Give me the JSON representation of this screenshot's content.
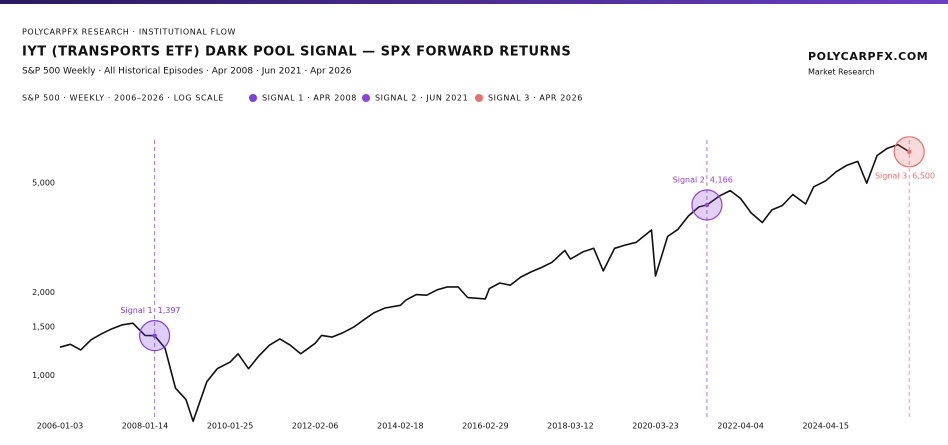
{
  "chart_data": {
    "type": "line",
    "kicker": "POLYCARPFX RESEARCH · INSTITUTIONAL FLOW",
    "title": "IYT (TRANSPORTS ETF) DARK POOL SIGNAL — SPX FORWARD RETURNS",
    "subtitle": "S&P 500 Weekly · All Historical Episodes · Apr 2008 · Jun 2021 · Apr 2026",
    "brand": "POLYCARPFX.COM",
    "brand_sub": "Market Research",
    "log_scale": true,
    "x": [
      "2006-01-03",
      "2006-04-03",
      "2006-07-03",
      "2006-10-02",
      "2007-01-02",
      "2007-04-02",
      "2007-07-02",
      "2007-10-01",
      "2008-01-14",
      "2008-04-07",
      "2008-07-07",
      "2008-10-06",
      "2009-01-05",
      "2009-03-09",
      "2009-07-06",
      "2009-10-05",
      "2010-01-25",
      "2010-04-05",
      "2010-07-05",
      "2010-10-04",
      "2011-01-03",
      "2011-04-04",
      "2011-07-04",
      "2011-10-03",
      "2012-02-06",
      "2012-04-02",
      "2012-07-02",
      "2012-10-01",
      "2013-01-07",
      "2013-04-01",
      "2013-07-01",
      "2013-10-07",
      "2014-02-18",
      "2014-04-07",
      "2014-07-07",
      "2014-10-06",
      "2015-01-05",
      "2015-04-06",
      "2015-07-06",
      "2015-09-28",
      "2016-02-29",
      "2016-04-04",
      "2016-07-04",
      "2016-10-03",
      "2017-01-02",
      "2017-04-03",
      "2017-07-03",
      "2017-10-02",
      "2018-01-22",
      "2018-03-12",
      "2018-07-02",
      "2018-10-01",
      "2018-12-24",
      "2019-04-01",
      "2019-07-01",
      "2019-10-07",
      "2020-02-17",
      "2020-03-23",
      "2020-07-06",
      "2020-10-05",
      "2021-01-04",
      "2021-04-05",
      "2021-06-14",
      "2021-10-04",
      "2022-01-03",
      "2022-04-04",
      "2022-07-04",
      "2022-10-10",
      "2023-01-02",
      "2023-04-03",
      "2023-07-03",
      "2023-10-23",
      "2024-01-01",
      "2024-04-15",
      "2024-07-15",
      "2024-10-14",
      "2025-01-20",
      "2025-04-07",
      "2025-07-07",
      "2025-10-06",
      "2026-01-05",
      "2026-04-13"
    ],
    "series": [
      {
        "name": "S&P 500 · WEEKLY · 2006–2026 · LOG SCALE",
        "color": "#111111",
        "values": [
          1268,
          1300,
          1240,
          1350,
          1420,
          1480,
          1530,
          1550,
          1400,
          1397,
          1260,
          900,
          820,
          683,
          950,
          1060,
          1120,
          1200,
          1060,
          1180,
          1290,
          1360,
          1290,
          1200,
          1310,
          1400,
          1380,
          1430,
          1500,
          1590,
          1690,
          1760,
          1800,
          1880,
          1970,
          1960,
          2050,
          2100,
          2100,
          1920,
          1900,
          2070,
          2170,
          2130,
          2280,
          2380,
          2470,
          2580,
          2850,
          2650,
          2820,
          2900,
          2400,
          2900,
          2980,
          3050,
          3380,
          2300,
          3200,
          3400,
          3800,
          4100,
          4166,
          4500,
          4700,
          4400,
          3900,
          3600,
          4000,
          4150,
          4550,
          4200,
          4850,
          5100,
          5500,
          5800,
          6000,
          5000,
          6300,
          6700,
          6900,
          6500
        ]
      }
    ],
    "signals": [
      {
        "name": "SIGNAL 1 · APR 2008",
        "label": "Signal 1",
        "x": "2008-04-07",
        "value": 1397,
        "value_label": "1,397",
        "color": "#7b3fe4"
      },
      {
        "name": "SIGNAL 2 · JUN 2021",
        "label": "Signal 2",
        "x": "2021-06-14",
        "value": 4166,
        "value_label": "4,166",
        "color": "#8e44d8"
      },
      {
        "name": "SIGNAL 3 · APR 2026",
        "label": "Signal 3",
        "x": "2026-04-13",
        "value": 6500,
        "value_label": "6,500",
        "color": "#e8706e"
      }
    ],
    "xlim": [
      "2006-01-03",
      "2026-04-20"
    ],
    "xticks": [
      "2006-01-03",
      "2008-01-14",
      "2010-01-25",
      "2012-02-06",
      "2014-02-18",
      "2016-02-29",
      "2018-03-12",
      "2020-03-23",
      "2022-04-04",
      "2024-04-15"
    ],
    "ylim": [
      690,
      7800
    ],
    "yticks": [
      {
        "value": 1000,
        "label": "1,000"
      },
      {
        "value": 1500,
        "label": "1,500"
      },
      {
        "value": 2000,
        "label": "2,000"
      },
      {
        "value": 5000,
        "label": "5,000"
      }
    ]
  }
}
